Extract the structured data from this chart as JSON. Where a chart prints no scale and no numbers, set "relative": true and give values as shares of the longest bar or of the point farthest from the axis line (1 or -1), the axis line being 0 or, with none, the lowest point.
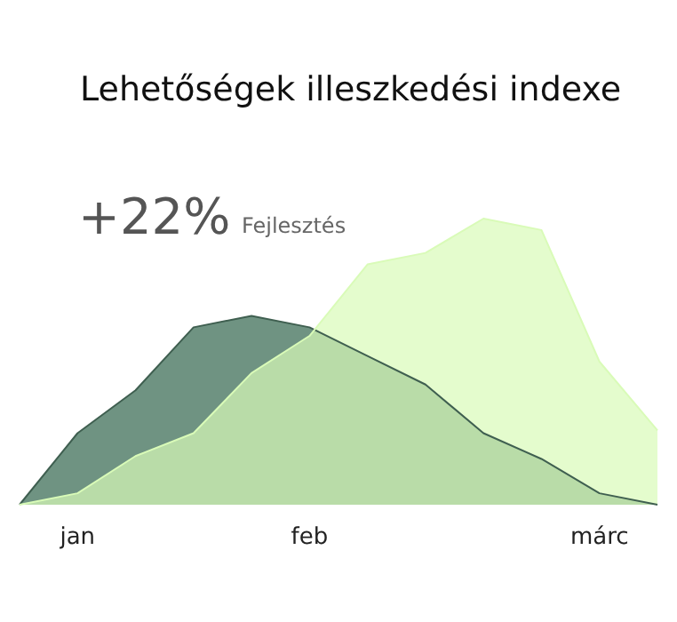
{
  "chart_data": {
    "type": "area",
    "title": "Lehetőségek illeszkedési indexe",
    "annotations": [
      "+22%",
      "Fejlesztés"
    ],
    "relative": true,
    "categories": [
      null,
      "jan",
      null,
      null,
      null,
      "feb",
      null,
      null,
      null,
      null,
      "márc",
      null
    ],
    "series": [
      {
        "color": "#6f9382",
        "values": [
          0,
          0.25,
          0.4,
          0.62,
          0.66,
          0.62,
          0.52,
          0.42,
          0.25,
          0.16,
          0.04,
          0
        ]
      },
      {
        "color": "#d9fbb8",
        "values": [
          0,
          0.04,
          0.17,
          0.25,
          0.46,
          0.59,
          0.84,
          0.88,
          1,
          0.96,
          0.5,
          0.26
        ]
      }
    ]
  }
}
